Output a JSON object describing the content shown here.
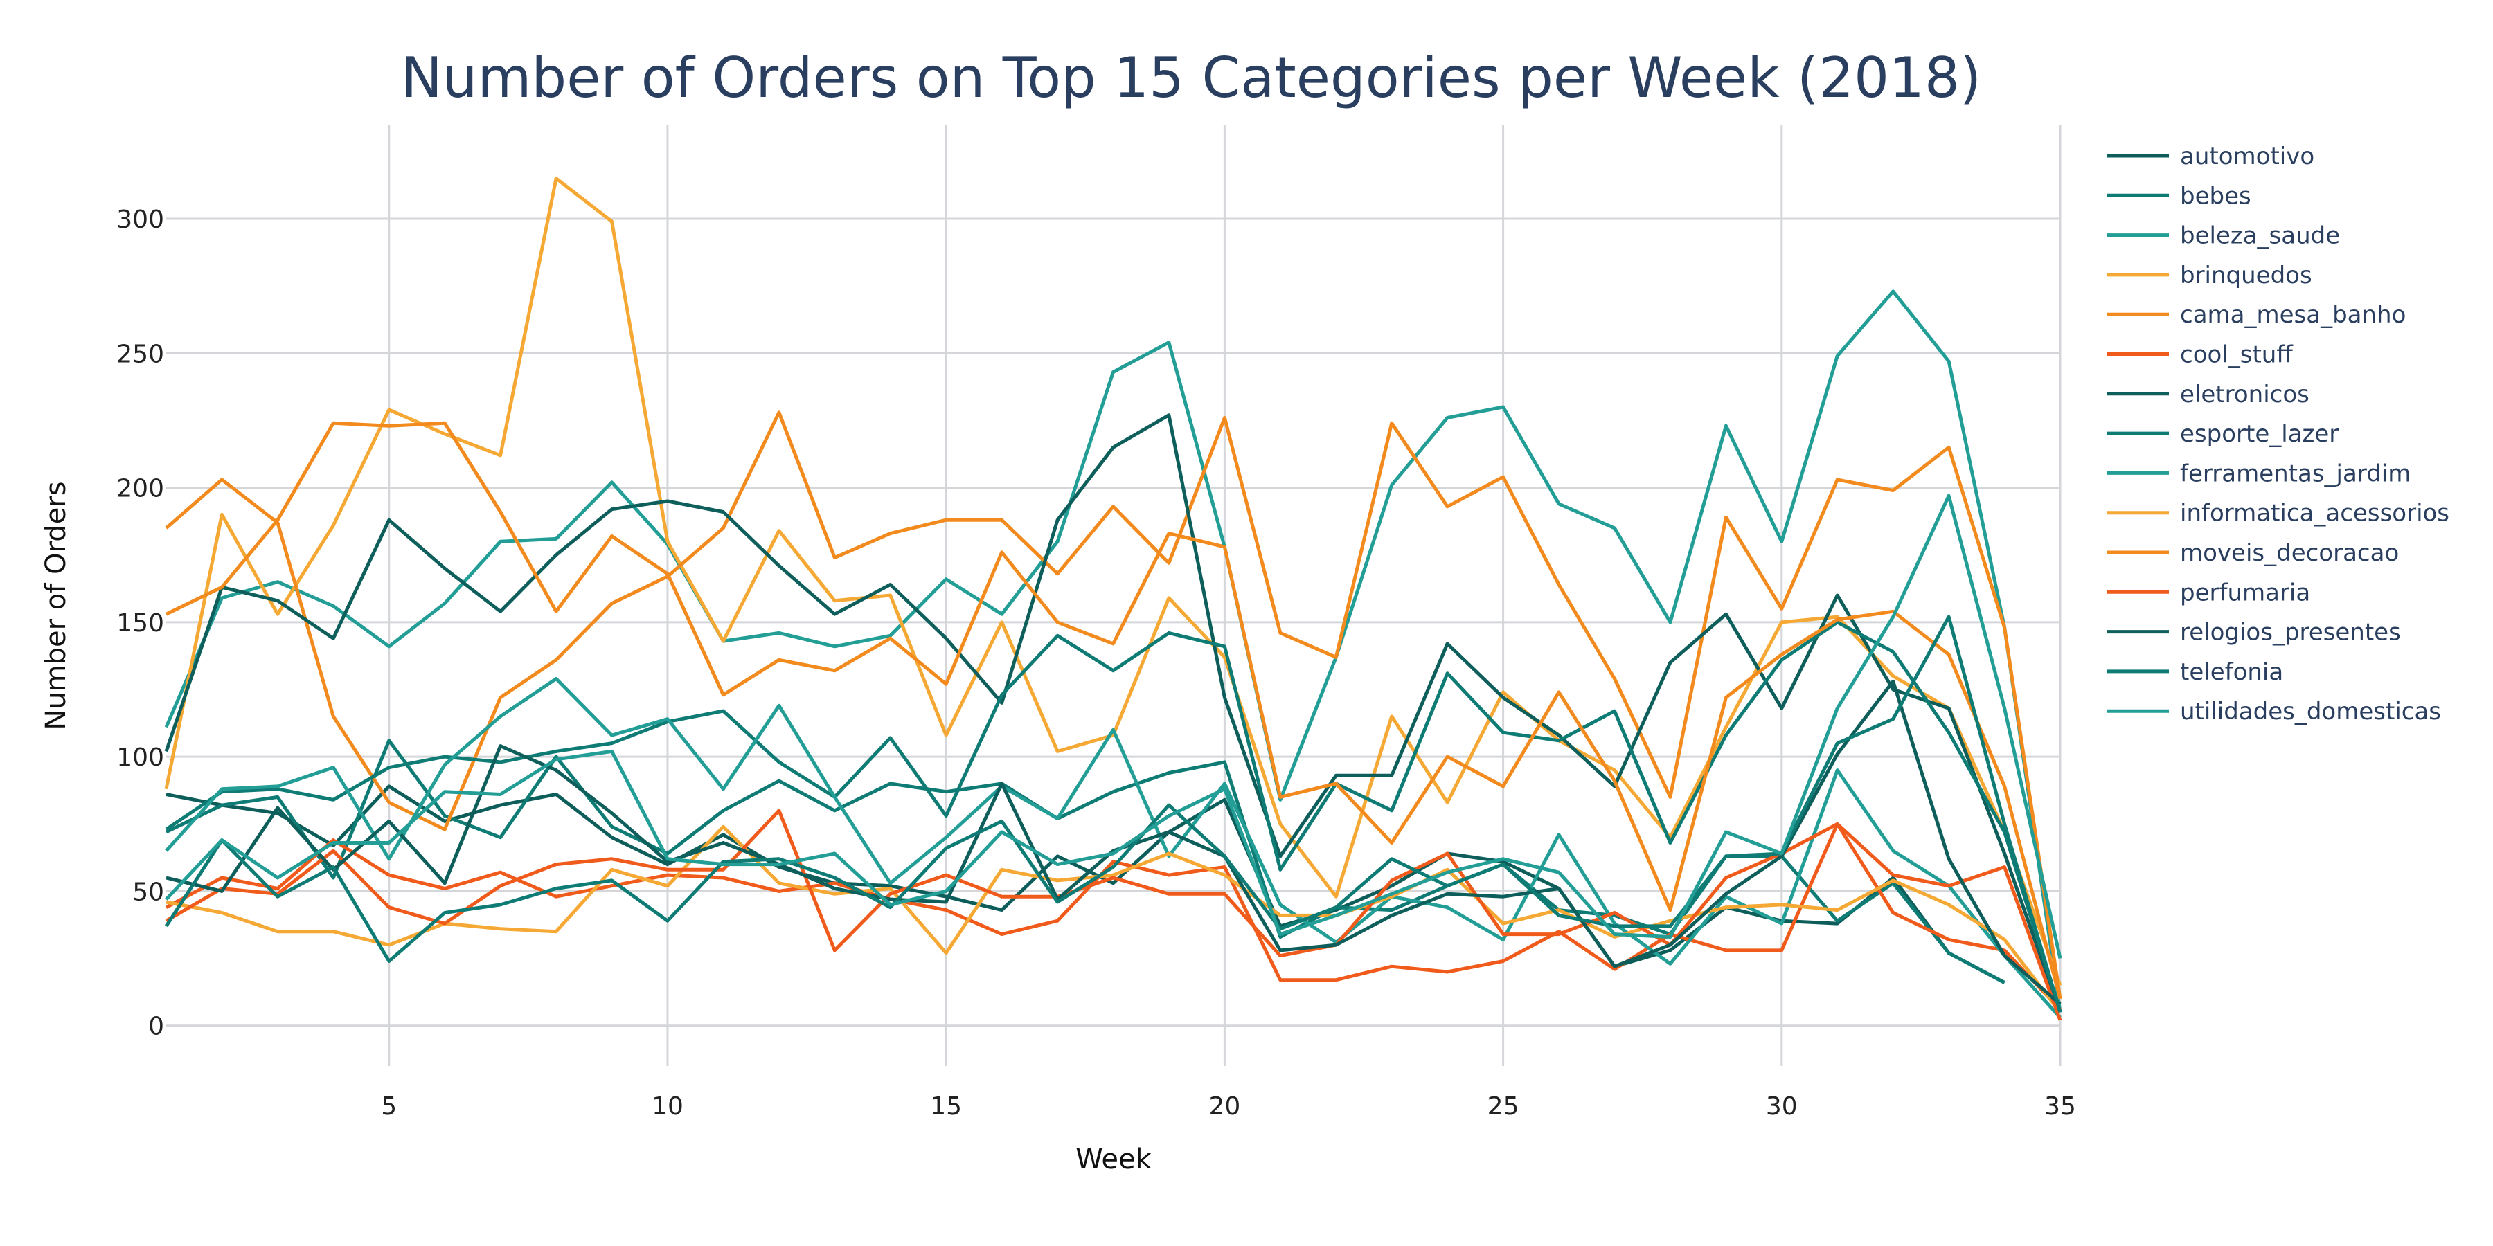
{
  "chart_data": {
    "type": "line",
    "title": "Number of Orders on Top 15 Categories per Week (2018)",
    "xlabel": "Week",
    "ylabel": "Number of Orders",
    "xlim": [
      1,
      35
    ],
    "ylim": [
      -15,
      335
    ],
    "x_ticks": [
      5,
      10,
      15,
      20,
      25,
      30,
      35
    ],
    "y_ticks": [
      0,
      50,
      100,
      150,
      200,
      250,
      300
    ],
    "grid": true,
    "legend_position": "right",
    "x": [
      1,
      2,
      3,
      4,
      5,
      6,
      7,
      8,
      9,
      10,
      11,
      12,
      13,
      14,
      15,
      16,
      17,
      18,
      19,
      20,
      21,
      22,
      23,
      24,
      25,
      26,
      27,
      28,
      29,
      30,
      31,
      32,
      33,
      34,
      35
    ],
    "series": [
      {
        "name": "automotivo",
        "color": "#0d5e5a",
        "values": [
          86,
          82,
          79,
          67,
          89,
          76,
          82,
          86,
          70,
          60,
          71,
          59,
          53,
          52,
          48,
          43,
          63,
          53,
          72,
          84,
          37,
          43,
          52,
          64,
          61,
          51,
          22,
          28,
          44,
          39,
          38,
          55,
          27,
          16,
          null
        ]
      },
      {
        "name": "bebes",
        "color": "#0e7c74",
        "values": [
          72,
          82,
          85,
          55,
          106,
          78,
          70,
          100,
          74,
          64,
          80,
          91,
          80,
          90,
          87,
          90,
          77,
          87,
          94,
          98,
          33,
          44,
          43,
          52,
          60,
          43,
          41,
          34,
          63,
          63,
          39,
          53,
          27,
          16,
          null
        ]
      },
      {
        "name": "beleza_saude",
        "color": "#239e96",
        "values": [
          111,
          159,
          165,
          156,
          141,
          157,
          180,
          181,
          202,
          179,
          143,
          146,
          141,
          145,
          166,
          153,
          180,
          243,
          254,
          178,
          84,
          137,
          201,
          226,
          230,
          194,
          185,
          150,
          223,
          180,
          249,
          273,
          247,
          148,
          5
        ]
      },
      {
        "name": "brinquedos",
        "color": "#f5a833",
        "values": [
          88,
          190,
          153,
          186,
          229,
          220,
          212,
          315,
          299,
          180,
          143,
          184,
          158,
          160,
          108,
          150,
          102,
          108,
          159,
          137,
          75,
          48,
          115,
          83,
          124,
          106,
          95,
          70,
          111,
          150,
          152,
          130,
          118,
          72,
          15
        ]
      },
      {
        "name": "cama_mesa_banho",
        "color": "#f28a1e",
        "values": [
          185,
          203,
          187,
          115,
          83,
          73,
          122,
          136,
          157,
          167,
          185,
          228,
          174,
          183,
          188,
          188,
          168,
          193,
          172,
          226,
          146,
          137,
          224,
          193,
          204,
          164,
          129,
          85,
          189,
          155,
          203,
          199,
          215,
          148,
          10
        ]
      },
      {
        "name": "cool_stuff",
        "color": "#f05a1a",
        "values": [
          44,
          55,
          51,
          69,
          56,
          51,
          57,
          48,
          52,
          56,
          55,
          50,
          53,
          47,
          43,
          34,
          39,
          61,
          56,
          59,
          17,
          17,
          22,
          20,
          24,
          35,
          21,
          34,
          28,
          28,
          75,
          42,
          32,
          28,
          6
        ]
      },
      {
        "name": "eletronicos",
        "color": "#0e5f5b",
        "values": [
          102,
          163,
          158,
          144,
          188,
          170,
          154,
          175,
          192,
          195,
          191,
          171,
          153,
          164,
          144,
          120,
          188,
          215,
          227,
          122,
          63,
          93,
          93,
          142,
          122,
          108,
          89,
          135,
          153,
          118,
          160,
          125,
          118,
          64,
          5
        ]
      },
      {
        "name": "esporte_lazer",
        "color": "#0e7c74",
        "values": [
          73,
          87,
          88,
          84,
          96,
          100,
          98,
          102,
          105,
          113,
          117,
          98,
          85,
          107,
          78,
          123,
          145,
          132,
          146,
          141,
          58,
          90,
          80,
          131,
          109,
          106,
          117,
          68,
          108,
          136,
          150,
          139,
          109,
          72,
          5
        ]
      },
      {
        "name": "ferramentas_jardim",
        "color": "#239e96",
        "values": [
          65,
          88,
          89,
          96,
          62,
          97,
          115,
          129,
          108,
          114,
          88,
          119,
          85,
          53,
          70,
          89,
          77,
          110,
          63,
          90,
          45,
          31,
          48,
          44,
          32,
          71,
          38,
          23,
          48,
          38,
          95,
          65,
          52,
          26,
          3
        ]
      },
      {
        "name": "informatica_acessorios",
        "color": "#f5a833",
        "values": [
          46,
          42,
          35,
          35,
          30,
          38,
          36,
          35,
          58,
          52,
          74,
          53,
          49,
          51,
          27,
          58,
          54,
          56,
          64,
          56,
          41,
          41,
          48,
          58,
          38,
          43,
          33,
          39,
          44,
          45,
          43,
          54,
          45,
          32,
          5
        ]
      },
      {
        "name": "moveis_decoracao",
        "color": "#f28a1e",
        "values": [
          153,
          163,
          188,
          224,
          223,
          224,
          191,
          154,
          182,
          168,
          123,
          136,
          132,
          144,
          127,
          176,
          150,
          142,
          183,
          178,
          85,
          90,
          68,
          100,
          89,
          124,
          91,
          43,
          122,
          138,
          151,
          154,
          138,
          89,
          10
        ]
      },
      {
        "name": "perfumaria",
        "color": "#f05a1a",
        "values": [
          39,
          51,
          49,
          65,
          44,
          38,
          52,
          60,
          62,
          58,
          58,
          80,
          28,
          49,
          56,
          48,
          48,
          55,
          49,
          49,
          26,
          30,
          54,
          64,
          34,
          34,
          42,
          30,
          55,
          64,
          75,
          56,
          52,
          59,
          2
        ]
      },
      {
        "name": "relogios_presentes",
        "color": "#0e5f5b",
        "values": [
          55,
          50,
          81,
          58,
          76,
          53,
          104,
          95,
          79,
          61,
          68,
          60,
          51,
          47,
          46,
          90,
          47,
          65,
          72,
          63,
          28,
          30,
          41,
          49,
          48,
          51,
          22,
          30,
          49,
          63,
          101,
          128,
          62,
          26,
          8
        ]
      },
      {
        "name": "telefonia",
        "color": "#0e7c74",
        "values": [
          37,
          69,
          48,
          59,
          24,
          42,
          45,
          51,
          54,
          39,
          61,
          62,
          55,
          44,
          66,
          76,
          46,
          59,
          82,
          63,
          36,
          44,
          62,
          52,
          60,
          41,
          37,
          37,
          63,
          64,
          105,
          114,
          152,
          75,
          5
        ]
      },
      {
        "name": "utilidades_domesticas",
        "color": "#239e96",
        "values": [
          47,
          69,
          55,
          68,
          68,
          87,
          86,
          99,
          102,
          62,
          60,
          60,
          64,
          45,
          50,
          72,
          60,
          64,
          78,
          88,
          34,
          41,
          49,
          57,
          62,
          57,
          34,
          33,
          72,
          64,
          118,
          152,
          197,
          118,
          25
        ]
      }
    ]
  }
}
